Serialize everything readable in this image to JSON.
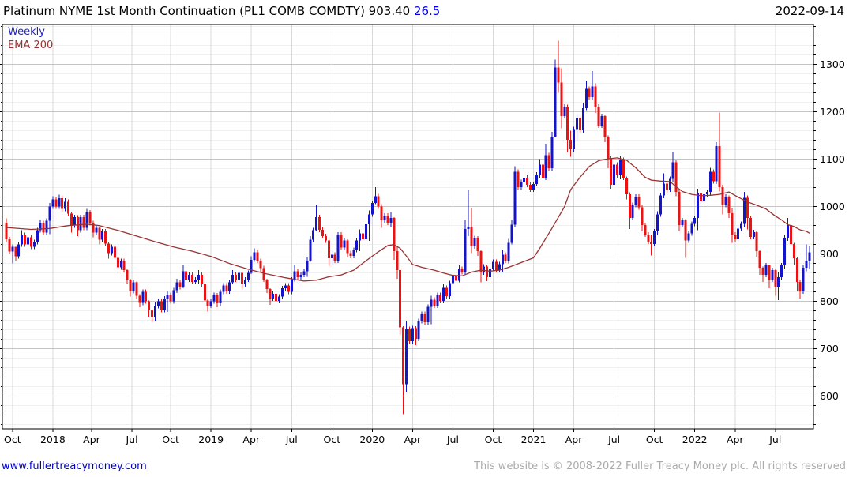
{
  "header": {
    "title": "Platinum NYME 1st Month Continuation (PL1 COMB COMDTY) 903.40",
    "change": "26.5",
    "date": "2022-09-14"
  },
  "legend": {
    "frequency": "Weekly",
    "ema": "EMA 200"
  },
  "footer": {
    "link": "www.fullertreacymoney.com",
    "copyright": "This website is © 2008-2022 Fuller Treacy Money plc. All rights reserved"
  },
  "colors": {
    "up_candle": "#1414c8",
    "down_candle": "#ee1111",
    "ema_line": "#993333",
    "grid_major": "#c4c4c4",
    "grid_minor": "#f0f0f0",
    "grid_vertical": "#d9d9d9",
    "axis": "#000000",
    "change_text": "#0000ee",
    "link_text": "#0000cc",
    "copyright_text": "#aaaaaa"
  },
  "chart_data": {
    "type": "candlestick",
    "title": "Platinum NYME 1st Month Continuation (PL1 COMB COMDTY)",
    "last_price": 903.4,
    "change": 26.5,
    "date": "2022-09-14",
    "frequency": "Weekly",
    "overlay": "EMA 200",
    "grid": {
      "h_major_step": 100,
      "h_minor_step": 20
    },
    "y_axis": {
      "min": 535,
      "max": 1385,
      "labels": [
        600,
        700,
        800,
        900,
        1000,
        1100,
        1200,
        1300
      ]
    },
    "x_ticks": [
      {
        "label": "Oct",
        "wk": 2
      },
      {
        "label": "2018",
        "wk": 15
      },
      {
        "label": "Apr",
        "wk": 27.5
      },
      {
        "label": "Jul",
        "wk": 40.5
      },
      {
        "label": "Oct",
        "wk": 53
      },
      {
        "label": "2019",
        "wk": 66
      },
      {
        "label": "Apr",
        "wk": 79
      },
      {
        "label": "Jul",
        "wk": 92
      },
      {
        "label": "Oct",
        "wk": 105
      },
      {
        "label": "2020",
        "wk": 118
      },
      {
        "label": "Apr",
        "wk": 131
      },
      {
        "label": "Jul",
        "wk": 144
      },
      {
        "label": "Oct",
        "wk": 157
      },
      {
        "label": "2021",
        "wk": 170
      },
      {
        "label": "Apr",
        "wk": 183
      },
      {
        "label": "Jul",
        "wk": 196
      },
      {
        "label": "Oct",
        "wk": 209
      },
      {
        "label": "2022",
        "wk": 222
      },
      {
        "label": "Apr",
        "wk": 235
      },
      {
        "label": "Jul",
        "wk": 248
      }
    ],
    "open_first": 965,
    "default_wick": 5,
    "candles": [
      [
        931,
        975,
        925
      ],
      [
        905
      ],
      [
        915,
        920,
        880
      ],
      [
        895,
        900,
        885
      ],
      [
        920
      ],
      [
        940,
        950,
        915
      ],
      [
        920
      ],
      [
        935
      ],
      [
        915
      ],
      [
        925
      ],
      [
        950
      ],
      [
        965,
        972,
        945
      ],
      [
        945
      ],
      [
        970
      ],
      [
        1000,
        1008,
        942
      ],
      [
        1015,
        1022,
        995
      ],
      [
        1000
      ],
      [
        1018,
        1025,
        995
      ],
      [
        995
      ],
      [
        1010,
        1018,
        990
      ],
      [
        985
      ],
      [
        960,
        988,
        945
      ],
      [
        978
      ],
      [
        950,
        982,
        938
      ],
      [
        978
      ],
      [
        955
      ],
      [
        988,
        995,
        950
      ],
      [
        965
      ],
      [
        945,
        970,
        935
      ],
      [
        955
      ],
      [
        930,
        958,
        920
      ],
      [
        948
      ],
      [
        922
      ],
      [
        902,
        925,
        890
      ],
      [
        915
      ],
      [
        892
      ],
      [
        872,
        895,
        860
      ],
      [
        885
      ],
      [
        866
      ],
      [
        846,
        868,
        838
      ],
      [
        822,
        848,
        810
      ],
      [
        840
      ],
      [
        812,
        842,
        805
      ],
      [
        797,
        815,
        788
      ],
      [
        820
      ],
      [
        800
      ],
      [
        782,
        802,
        768
      ],
      [
        766,
        784,
        756
      ],
      [
        790,
        798,
        758
      ],
      [
        800
      ],
      [
        782
      ],
      [
        806
      ],
      [
        814,
        822,
        778
      ],
      [
        800
      ],
      [
        824
      ],
      [
        840,
        848,
        818
      ],
      [
        830
      ],
      [
        864,
        876,
        828
      ],
      [
        846
      ],
      [
        856
      ],
      [
        841
      ],
      [
        846
      ],
      [
        856,
        866,
        838
      ],
      [
        836
      ],
      [
        802,
        838,
        795
      ],
      [
        791,
        805,
        779
      ],
      [
        800
      ],
      [
        814
      ],
      [
        796,
        818,
        788
      ],
      [
        820
      ],
      [
        834
      ],
      [
        821
      ],
      [
        840
      ],
      [
        856,
        866,
        838
      ],
      [
        846
      ],
      [
        860
      ],
      [
        836,
        862,
        828
      ],
      [
        846
      ],
      [
        860
      ],
      [
        888,
        895,
        858
      ],
      [
        904,
        912,
        884
      ],
      [
        886
      ],
      [
        870,
        890,
        862
      ],
      [
        846
      ],
      [
        826,
        848,
        818
      ],
      [
        806,
        828,
        793
      ],
      [
        816
      ],
      [
        801,
        818,
        790
      ],
      [
        810
      ],
      [
        828
      ],
      [
        834
      ],
      [
        820
      ],
      [
        846
      ],
      [
        864,
        876,
        842
      ],
      [
        851
      ],
      [
        856
      ],
      [
        864
      ],
      [
        886,
        893,
        852
      ],
      [
        930,
        938,
        884
      ],
      [
        950
      ],
      [
        978,
        1003,
        948
      ],
      [
        951
      ],
      [
        938
      ],
      [
        929
      ],
      [
        891,
        932,
        875
      ],
      [
        899,
        908,
        876
      ],
      [
        886
      ],
      [
        941
      ],
      [
        914
      ],
      [
        929
      ],
      [
        902,
        931,
        894
      ],
      [
        896
      ],
      [
        909
      ],
      [
        929
      ],
      [
        944,
        952,
        906
      ],
      [
        931
      ],
      [
        963
      ],
      [
        984,
        992,
        928
      ],
      [
        1008
      ],
      [
        1022,
        1041,
        1005
      ],
      [
        1000
      ],
      [
        971,
        1005,
        955
      ],
      [
        981
      ],
      [
        966
      ],
      [
        976,
        989,
        958
      ],
      [
        906,
        978,
        888
      ],
      [
        866,
        916,
        848
      ],
      [
        745,
        868,
        730
      ],
      [
        625,
        748,
        562
      ],
      [
        742,
        758,
        608
      ],
      [
        716
      ],
      [
        744
      ],
      [
        721,
        748,
        708
      ],
      [
        759
      ],
      [
        774
      ],
      [
        756
      ],
      [
        789
      ],
      [
        804,
        812,
        752
      ],
      [
        791
      ],
      [
        814
      ],
      [
        801
      ],
      [
        829,
        836,
        796
      ],
      [
        811
      ],
      [
        839
      ],
      [
        854
      ],
      [
        844
      ],
      [
        869,
        878,
        840
      ],
      [
        862
      ],
      [
        953,
        972,
        858
      ],
      [
        958,
        1035,
        938
      ],
      [
        916,
        996,
        902
      ],
      [
        934
      ],
      [
        906,
        938,
        896
      ],
      [
        861,
        908,
        840
      ],
      [
        874
      ],
      [
        851,
        878,
        843
      ],
      [
        869
      ],
      [
        884
      ],
      [
        866
      ],
      [
        879
      ],
      [
        899,
        908,
        862
      ],
      [
        886
      ],
      [
        924,
        932,
        880
      ],
      [
        962,
        972,
        920
      ],
      [
        1074,
        1085,
        958
      ],
      [
        1041
      ],
      [
        1052
      ],
      [
        1061,
        1082,
        1032
      ],
      [
        1046
      ],
      [
        1036
      ],
      [
        1048
      ],
      [
        1068
      ],
      [
        1089,
        1100,
        1060
      ],
      [
        1061
      ],
      [
        1109,
        1133,
        1056
      ],
      [
        1081
      ],
      [
        1148,
        1158,
        1076
      ],
      [
        1294,
        1310,
        1146
      ],
      [
        1262,
        1350,
        1240
      ],
      [
        1191,
        1292,
        1165
      ],
      [
        1211
      ],
      [
        1141,
        1215,
        1115
      ],
      [
        1121,
        1160,
        1105
      ],
      [
        1164
      ],
      [
        1186,
        1196,
        1140
      ],
      [
        1161
      ],
      [
        1208,
        1218,
        1156
      ],
      [
        1249,
        1265,
        1204
      ],
      [
        1231
      ],
      [
        1254,
        1286,
        1226
      ],
      [
        1211,
        1260,
        1198
      ],
      [
        1171
      ],
      [
        1191
      ],
      [
        1146,
        1194,
        1136
      ],
      [
        1101,
        1150,
        1081
      ],
      [
        1046,
        1106,
        1038
      ],
      [
        1089
      ],
      [
        1066
      ],
      [
        1099,
        1108,
        1058
      ],
      [
        1061
      ],
      [
        1026,
        1064,
        1015
      ],
      [
        976,
        1030,
        953
      ],
      [
        1004
      ],
      [
        1021
      ],
      [
        999
      ],
      [
        961,
        1004,
        948
      ],
      [
        941
      ],
      [
        926
      ],
      [
        921,
        941,
        897
      ],
      [
        948
      ],
      [
        984,
        990,
        940
      ],
      [
        1024
      ],
      [
        1049,
        1070,
        1018
      ],
      [
        1036
      ],
      [
        1059
      ],
      [
        1094,
        1116,
        1052
      ],
      [
        1031,
        1098,
        1022
      ],
      [
        961,
        1036,
        948
      ],
      [
        971
      ],
      [
        929,
        974,
        892
      ],
      [
        944
      ],
      [
        964
      ],
      [
        976
      ],
      [
        1029,
        1038,
        950
      ],
      [
        1011
      ],
      [
        1026
      ],
      [
        1031
      ],
      [
        1074,
        1082,
        1024
      ],
      [
        1054
      ],
      [
        1128,
        1136,
        1048
      ],
      [
        1041,
        1199,
        1032
      ],
      [
        1004,
        1046,
        984
      ],
      [
        1021
      ],
      [
        986,
        1024,
        976
      ],
      [
        941,
        998,
        924
      ],
      [
        931
      ],
      [
        954
      ],
      [
        964
      ],
      [
        1019,
        1031,
        958
      ],
      [
        976,
        1024,
        952
      ],
      [
        936
      ],
      [
        946
      ],
      [
        906,
        948,
        894
      ],
      [
        871,
        908,
        856
      ],
      [
        856,
        874,
        841
      ],
      [
        876
      ],
      [
        846,
        878,
        828
      ],
      [
        866
      ],
      [
        831,
        868,
        812
      ],
      [
        851,
        862,
        803
      ],
      [
        876
      ],
      [
        934,
        940,
        868
      ],
      [
        961,
        976,
        928
      ],
      [
        921
      ],
      [
        891,
        924,
        876
      ],
      [
        841,
        894,
        822
      ],
      [
        821,
        846,
        806
      ],
      [
        871,
        878,
        816
      ],
      [
        886,
        920,
        864
      ],
      [
        903.4,
        916,
        868
      ]
    ],
    "ema": {
      "label": "EMA 200",
      "points": [
        [
          0,
          956
        ],
        [
          8,
          952
        ],
        [
          14,
          954
        ],
        [
          20,
          960
        ],
        [
          26,
          963
        ],
        [
          30,
          960
        ],
        [
          36,
          950
        ],
        [
          42,
          938
        ],
        [
          48,
          926
        ],
        [
          54,
          915
        ],
        [
          60,
          906
        ],
        [
          66,
          895
        ],
        [
          72,
          880
        ],
        [
          78,
          868
        ],
        [
          84,
          858
        ],
        [
          90,
          850
        ],
        [
          96,
          843
        ],
        [
          100,
          845
        ],
        [
          104,
          852
        ],
        [
          108,
          856
        ],
        [
          112,
          866
        ],
        [
          116,
          886
        ],
        [
          120,
          905
        ],
        [
          123,
          918
        ],
        [
          125,
          920
        ],
        [
          127,
          912
        ],
        [
          129,
          896
        ],
        [
          131,
          878
        ],
        [
          134,
          872
        ],
        [
          138,
          866
        ],
        [
          141,
          860
        ],
        [
          144,
          855
        ],
        [
          147,
          854
        ],
        [
          150,
          862
        ],
        [
          153,
          866
        ],
        [
          156,
          864
        ],
        [
          159,
          866
        ],
        [
          162,
          872
        ],
        [
          166,
          882
        ],
        [
          170,
          892
        ],
        [
          172,
          912
        ],
        [
          176,
          955
        ],
        [
          180,
          1000
        ],
        [
          182,
          1036
        ],
        [
          185,
          1062
        ],
        [
          188,
          1085
        ],
        [
          191,
          1097
        ],
        [
          194,
          1101
        ],
        [
          197,
          1103
        ],
        [
          200,
          1098
        ],
        [
          203,
          1082
        ],
        [
          206,
          1062
        ],
        [
          208,
          1056
        ],
        [
          211,
          1054
        ],
        [
          214,
          1053
        ],
        [
          216,
          1042
        ],
        [
          218,
          1032
        ],
        [
          221,
          1026
        ],
        [
          224,
          1023
        ],
        [
          227,
          1024
        ],
        [
          230,
          1026
        ],
        [
          233,
          1031
        ],
        [
          236,
          1020
        ],
        [
          239,
          1010
        ],
        [
          242,
          1003
        ],
        [
          245,
          995
        ],
        [
          248,
          980
        ],
        [
          250,
          972
        ],
        [
          252,
          962
        ],
        [
          254,
          958
        ],
        [
          256,
          951
        ],
        [
          258,
          948
        ],
        [
          259,
          944
        ]
      ]
    }
  }
}
